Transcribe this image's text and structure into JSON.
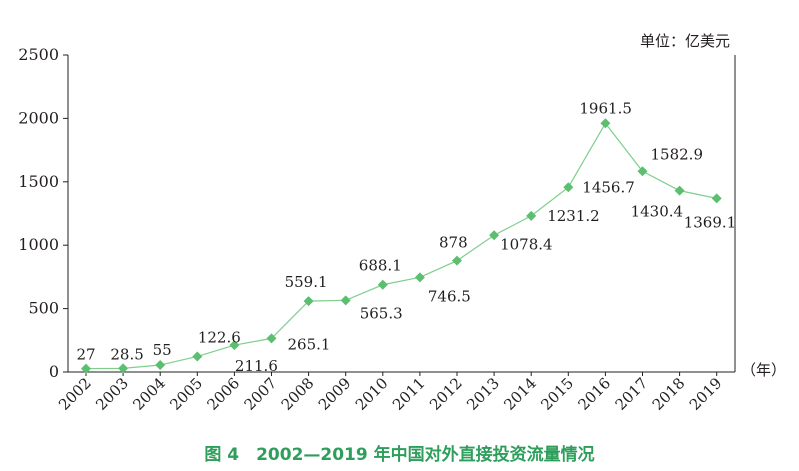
{
  "unit_label": "单位：亿美元",
  "x_unit_label": "（年）",
  "caption": "图 4　2002—2019 年中国对外直接投资流量情况",
  "colors": {
    "line": "#7dcf8c",
    "marker": "#5bbf6f",
    "axis": "#231f20",
    "caption": "#2e9e5b"
  },
  "chart_data": {
    "type": "line",
    "title": "图 4　2002—2019 年中国对外直接投资流量情况",
    "xlabel": "（年）",
    "ylabel": "单位：亿美元",
    "ylim": [
      0,
      2500
    ],
    "yticks": [
      0,
      500,
      1000,
      1500,
      2000,
      2500
    ],
    "grid": false,
    "categories": [
      "2002",
      "2003",
      "2004",
      "2005",
      "2006",
      "2007",
      "2008",
      "2009",
      "2010",
      "2011",
      "2012",
      "2013",
      "2014",
      "2015",
      "2016",
      "2017",
      "2018",
      "2019"
    ],
    "values": [
      27,
      28.5,
      55,
      122.6,
      211.6,
      265.1,
      559.1,
      565.3,
      688.1,
      746.5,
      878,
      1078.4,
      1231.2,
      1456.7,
      1961.5,
      1582.9,
      1430.4,
      1369.1
    ],
    "value_labels": [
      "27",
      "28.5",
      "55",
      "122.6",
      "211.6",
      "265.1",
      "559.1",
      "565.3",
      "688.1",
      "746.5",
      "878",
      "1078.4",
      "1231.2",
      "1456.7",
      "1961.5",
      "1582.9",
      "1430.4",
      "1369.1"
    ]
  }
}
